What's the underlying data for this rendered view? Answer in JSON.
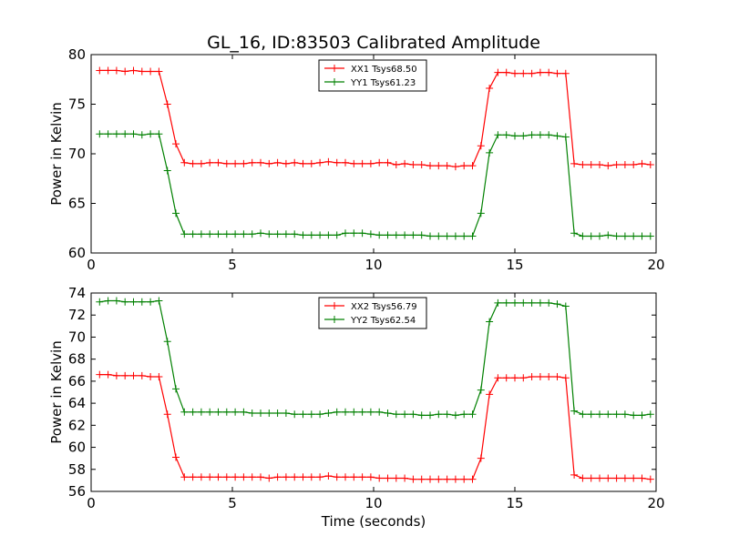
{
  "figure": {
    "title": "GL_16, ID:83503 Calibrated Amplitude",
    "xlabel": "Time (seconds)"
  },
  "chart_data": [
    {
      "type": "line",
      "title": "GL_16, ID:83503 Calibrated Amplitude",
      "xlabel": "",
      "ylabel": "Power in Kelvin",
      "xlim": [
        0,
        20
      ],
      "ylim": [
        60,
        80
      ],
      "xticks": [
        "0",
        "5",
        "10",
        "15",
        "20"
      ],
      "yticks": [
        "60",
        "65",
        "70",
        "75",
        "80"
      ],
      "legend_position": "top-center",
      "x": [
        0.3,
        0.6,
        0.9,
        1.2,
        1.5,
        1.8,
        2.1,
        2.4,
        2.7,
        3.0,
        3.3,
        3.6,
        3.9,
        4.2,
        4.5,
        4.8,
        5.1,
        5.4,
        5.7,
        6.0,
        6.3,
        6.6,
        6.9,
        7.2,
        7.5,
        7.8,
        8.1,
        8.4,
        8.7,
        9.0,
        9.3,
        9.6,
        9.9,
        10.2,
        10.5,
        10.8,
        11.1,
        11.4,
        11.7,
        12.0,
        12.3,
        12.6,
        12.9,
        13.2,
        13.5,
        13.8,
        14.1,
        14.4,
        14.7,
        15.0,
        15.3,
        15.6,
        15.9,
        16.2,
        16.5,
        16.8,
        17.1,
        17.4,
        17.7,
        18.0,
        18.3,
        18.6,
        18.9,
        19.2,
        19.5,
        19.8
      ],
      "series": [
        {
          "name": "XX1 Tsys68.50",
          "color": "#ff0000",
          "values": [
            78.4,
            78.4,
            78.4,
            78.3,
            78.4,
            78.3,
            78.3,
            78.3,
            75.0,
            71.0,
            69.1,
            69.0,
            69.0,
            69.1,
            69.1,
            69.0,
            69.0,
            69.0,
            69.1,
            69.1,
            69.0,
            69.1,
            69.0,
            69.1,
            69.0,
            69.0,
            69.1,
            69.2,
            69.1,
            69.1,
            69.0,
            69.0,
            69.0,
            69.1,
            69.1,
            68.9,
            69.0,
            68.9,
            68.9,
            68.8,
            68.8,
            68.8,
            68.7,
            68.8,
            68.8,
            70.8,
            76.6,
            78.2,
            78.2,
            78.1,
            78.1,
            78.1,
            78.2,
            78.2,
            78.1,
            78.1,
            69.0,
            68.9,
            68.9,
            68.9,
            68.8,
            68.9,
            68.9,
            68.9,
            69.0,
            68.9
          ]
        },
        {
          "name": "YY1 Tsys61.23",
          "color": "#008000",
          "values": [
            72.0,
            72.0,
            72.0,
            72.0,
            72.0,
            71.9,
            72.0,
            72.0,
            68.3,
            64.0,
            61.9,
            61.9,
            61.9,
            61.9,
            61.9,
            61.9,
            61.9,
            61.9,
            61.9,
            62.0,
            61.9,
            61.9,
            61.9,
            61.9,
            61.8,
            61.8,
            61.8,
            61.8,
            61.8,
            62.0,
            62.0,
            62.0,
            61.9,
            61.8,
            61.8,
            61.8,
            61.8,
            61.8,
            61.8,
            61.7,
            61.7,
            61.7,
            61.7,
            61.7,
            61.7,
            64.0,
            70.1,
            71.9,
            71.9,
            71.8,
            71.8,
            71.9,
            71.9,
            71.9,
            71.8,
            71.7,
            62.0,
            61.7,
            61.7,
            61.7,
            61.8,
            61.7,
            61.7,
            61.7,
            61.7,
            61.7
          ]
        }
      ]
    },
    {
      "type": "line",
      "title": "",
      "xlabel": "Time (seconds)",
      "ylabel": "Power in Kelvin",
      "xlim": [
        0,
        20
      ],
      "ylim": [
        56,
        74
      ],
      "xticks": [
        "0",
        "5",
        "10",
        "15",
        "20"
      ],
      "yticks": [
        "56",
        "58",
        "60",
        "62",
        "64",
        "66",
        "68",
        "70",
        "72",
        "74"
      ],
      "legend_position": "top-center",
      "x": [
        0.3,
        0.6,
        0.9,
        1.2,
        1.5,
        1.8,
        2.1,
        2.4,
        2.7,
        3.0,
        3.3,
        3.6,
        3.9,
        4.2,
        4.5,
        4.8,
        5.1,
        5.4,
        5.7,
        6.0,
        6.3,
        6.6,
        6.9,
        7.2,
        7.5,
        7.8,
        8.1,
        8.4,
        8.7,
        9.0,
        9.3,
        9.6,
        9.9,
        10.2,
        10.5,
        10.8,
        11.1,
        11.4,
        11.7,
        12.0,
        12.3,
        12.6,
        12.9,
        13.2,
        13.5,
        13.8,
        14.1,
        14.4,
        14.7,
        15.0,
        15.3,
        15.6,
        15.9,
        16.2,
        16.5,
        16.8,
        17.1,
        17.4,
        17.7,
        18.0,
        18.3,
        18.6,
        18.9,
        19.2,
        19.5,
        19.8
      ],
      "series": [
        {
          "name": "XX2 Tsys56.79",
          "color": "#ff0000",
          "values": [
            66.6,
            66.6,
            66.5,
            66.5,
            66.5,
            66.5,
            66.4,
            66.4,
            63.0,
            59.1,
            57.3,
            57.3,
            57.3,
            57.3,
            57.3,
            57.3,
            57.3,
            57.3,
            57.3,
            57.3,
            57.2,
            57.3,
            57.3,
            57.3,
            57.3,
            57.3,
            57.3,
            57.4,
            57.3,
            57.3,
            57.3,
            57.3,
            57.3,
            57.2,
            57.2,
            57.2,
            57.2,
            57.1,
            57.1,
            57.1,
            57.1,
            57.1,
            57.1,
            57.1,
            57.1,
            59.0,
            64.8,
            66.3,
            66.3,
            66.3,
            66.3,
            66.4,
            66.4,
            66.4,
            66.4,
            66.3,
            57.5,
            57.2,
            57.2,
            57.2,
            57.2,
            57.2,
            57.2,
            57.2,
            57.2,
            57.1
          ]
        },
        {
          "name": "YY2 Tsys62.54",
          "color": "#008000",
          "values": [
            73.2,
            73.3,
            73.3,
            73.2,
            73.2,
            73.2,
            73.2,
            73.3,
            69.6,
            65.3,
            63.2,
            63.2,
            63.2,
            63.2,
            63.2,
            63.2,
            63.2,
            63.2,
            63.1,
            63.1,
            63.1,
            63.1,
            63.1,
            63.0,
            63.0,
            63.0,
            63.0,
            63.1,
            63.2,
            63.2,
            63.2,
            63.2,
            63.2,
            63.2,
            63.1,
            63.0,
            63.0,
            63.0,
            62.9,
            62.9,
            63.0,
            63.0,
            62.9,
            63.0,
            63.0,
            65.2,
            71.4,
            73.1,
            73.1,
            73.1,
            73.1,
            73.1,
            73.1,
            73.1,
            73.0,
            72.8,
            63.3,
            63.0,
            63.0,
            63.0,
            63.0,
            63.0,
            63.0,
            62.9,
            62.9,
            63.0
          ]
        }
      ]
    }
  ]
}
